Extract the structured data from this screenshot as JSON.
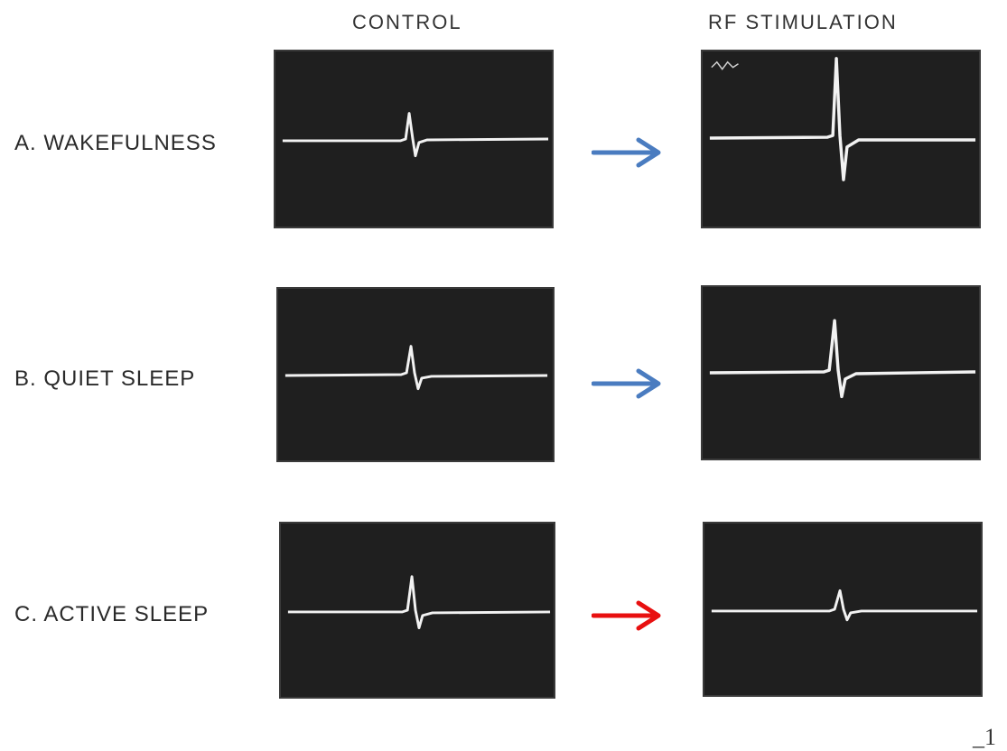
{
  "headers": {
    "control": "CONTROL",
    "rf_stimulation": "RF STIMULATION"
  },
  "rows": [
    {
      "label": "A. WAKEFULNESS",
      "arrow_color": "#4a7cc0"
    },
    {
      "label": "B. QUIET SLEEP",
      "arrow_color": "#4a7cc0"
    },
    {
      "label": "C. ACTIVE SLEEP",
      "arrow_color": "#e81010"
    }
  ],
  "scale_mark": "1",
  "colors": {
    "panel_background": "#1f1f1f",
    "trace": "#f2f2f2"
  }
}
